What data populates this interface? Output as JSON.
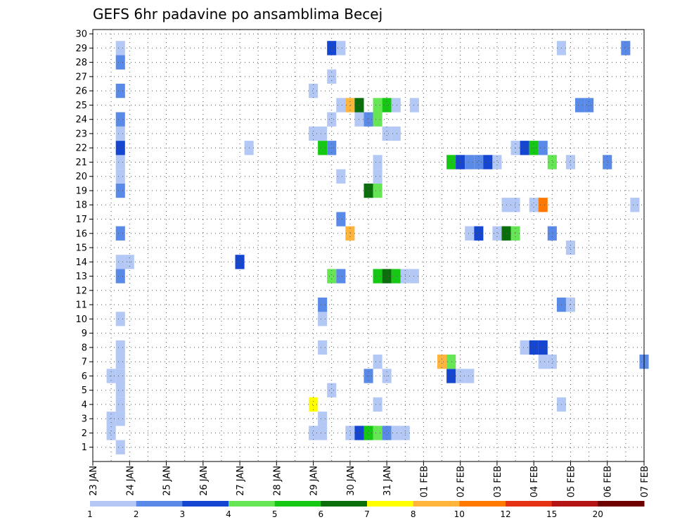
{
  "chart_data": {
    "type": "heatmap",
    "title": "GEFS 6hr padavine po ansamblima Becej",
    "ylabels": [
      "1",
      "2",
      "3",
      "4",
      "5",
      "6",
      "7",
      "8",
      "9",
      "10",
      "11",
      "12",
      "13",
      "14",
      "15",
      "16",
      "17",
      "18",
      "19",
      "20",
      "21",
      "22",
      "23",
      "24",
      "25",
      "26",
      "27",
      "28",
      "29",
      "30"
    ],
    "xlabels": [
      "23 JAN",
      "24 JAN",
      "25 JAN",
      "26 JAN",
      "27 JAN",
      "28 JAN",
      "29 JAN",
      "30 JAN",
      "31 JAN",
      "01 FEB",
      "02 FEB",
      "03 FEB",
      "04 FEB",
      "05 FEB",
      "06 FEB",
      "07 FEB"
    ],
    "x_range_days": [
      0,
      15
    ],
    "y_range": [
      0,
      30
    ],
    "grid": true,
    "colorbar": {
      "levels": [
        1,
        2,
        3,
        4,
        5,
        6,
        7,
        8,
        10,
        12,
        15,
        20
      ],
      "colors": [
        "#b4c8f5",
        "#5a8ae8",
        "#1446d2",
        "#66e655",
        "#14c814",
        "#0a6e0a",
        "#ffff00",
        "#ffb43c",
        "#ff7800",
        "#e63214",
        "#b41414",
        "#6e0000"
      ]
    },
    "cells": [
      {
        "member": 1,
        "day": 0.75,
        "cls": 0
      },
      {
        "member": 2,
        "day": 0.5,
        "cls": 0
      },
      {
        "member": 2,
        "day": 6.0,
        "cls": 0
      },
      {
        "member": 2,
        "day": 6.25,
        "cls": 0
      },
      {
        "member": 2,
        "day": 7.0,
        "cls": 0
      },
      {
        "member": 2,
        "day": 7.25,
        "cls": 2
      },
      {
        "member": 2,
        "day": 7.5,
        "cls": 4
      },
      {
        "member": 2,
        "day": 7.75,
        "cls": 3
      },
      {
        "member": 2,
        "day": 8.0,
        "cls": 1
      },
      {
        "member": 2,
        "day": 8.25,
        "cls": 0
      },
      {
        "member": 2,
        "day": 8.5,
        "cls": 0
      },
      {
        "member": 3,
        "day": 0.5,
        "cls": 0
      },
      {
        "member": 3,
        "day": 0.75,
        "cls": 0
      },
      {
        "member": 3,
        "day": 6.25,
        "cls": 0
      },
      {
        "member": 4,
        "day": 0.75,
        "cls": 0
      },
      {
        "member": 4,
        "day": 6.0,
        "cls": 6
      },
      {
        "member": 4,
        "day": 7.75,
        "cls": 0
      },
      {
        "member": 4,
        "day": 12.75,
        "cls": 0
      },
      {
        "member": 5,
        "day": 0.75,
        "cls": 0
      },
      {
        "member": 5,
        "day": 6.5,
        "cls": 0
      },
      {
        "member": 6,
        "day": 0.5,
        "cls": 0
      },
      {
        "member": 6,
        "day": 0.75,
        "cls": 0
      },
      {
        "member": 6,
        "day": 7.5,
        "cls": 1
      },
      {
        "member": 6,
        "day": 8.0,
        "cls": 0
      },
      {
        "member": 6,
        "day": 9.75,
        "cls": 2
      },
      {
        "member": 6,
        "day": 10.0,
        "cls": 0
      },
      {
        "member": 6,
        "day": 10.25,
        "cls": 0
      },
      {
        "member": 7,
        "day": 0.75,
        "cls": 0
      },
      {
        "member": 7,
        "day": 7.75,
        "cls": 0
      },
      {
        "member": 7,
        "day": 9.5,
        "cls": 7
      },
      {
        "member": 7,
        "day": 9.75,
        "cls": 3
      },
      {
        "member": 7,
        "day": 12.25,
        "cls": 0
      },
      {
        "member": 7,
        "day": 12.5,
        "cls": 0
      },
      {
        "member": 7,
        "day": 15.0,
        "cls": 1
      },
      {
        "member": 8,
        "day": 0.75,
        "cls": 0
      },
      {
        "member": 8,
        "day": 6.25,
        "cls": 0
      },
      {
        "member": 8,
        "day": 11.75,
        "cls": 0
      },
      {
        "member": 8,
        "day": 12.0,
        "cls": 2
      },
      {
        "member": 8,
        "day": 12.25,
        "cls": 2
      },
      {
        "member": 10,
        "day": 0.75,
        "cls": 0
      },
      {
        "member": 10,
        "day": 6.25,
        "cls": 0
      },
      {
        "member": 11,
        "day": 6.25,
        "cls": 1
      },
      {
        "member": 11,
        "day": 12.75,
        "cls": 1
      },
      {
        "member": 11,
        "day": 13.0,
        "cls": 0
      },
      {
        "member": 13,
        "day": 0.75,
        "cls": 1
      },
      {
        "member": 13,
        "day": 6.5,
        "cls": 3
      },
      {
        "member": 13,
        "day": 6.75,
        "cls": 1
      },
      {
        "member": 13,
        "day": 7.75,
        "cls": 4
      },
      {
        "member": 13,
        "day": 8.0,
        "cls": 5
      },
      {
        "member": 13,
        "day": 8.25,
        "cls": 4
      },
      {
        "member": 13,
        "day": 8.5,
        "cls": 0
      },
      {
        "member": 13,
        "day": 8.75,
        "cls": 0
      },
      {
        "member": 14,
        "day": 0.75,
        "cls": 0
      },
      {
        "member": 14,
        "day": 1.0,
        "cls": 0
      },
      {
        "member": 14,
        "day": 4.0,
        "cls": 2
      },
      {
        "member": 15,
        "day": 13.0,
        "cls": 0
      },
      {
        "member": 16,
        "day": 0.75,
        "cls": 1
      },
      {
        "member": 16,
        "day": 7.0,
        "cls": 7
      },
      {
        "member": 16,
        "day": 10.25,
        "cls": 0
      },
      {
        "member": 16,
        "day": 10.5,
        "cls": 2
      },
      {
        "member": 16,
        "day": 11.0,
        "cls": 0
      },
      {
        "member": 16,
        "day": 11.25,
        "cls": 5
      },
      {
        "member": 16,
        "day": 11.5,
        "cls": 3
      },
      {
        "member": 16,
        "day": 12.5,
        "cls": 1
      },
      {
        "member": 17,
        "day": 6.75,
        "cls": 1
      },
      {
        "member": 18,
        "day": 11.25,
        "cls": 0
      },
      {
        "member": 18,
        "day": 11.5,
        "cls": 0
      },
      {
        "member": 18,
        "day": 12.0,
        "cls": 0
      },
      {
        "member": 18,
        "day": 12.25,
        "cls": 8
      },
      {
        "member": 18,
        "day": 14.75,
        "cls": 0
      },
      {
        "member": 19,
        "day": 0.75,
        "cls": 1
      },
      {
        "member": 19,
        "day": 7.5,
        "cls": 5
      },
      {
        "member": 19,
        "day": 7.75,
        "cls": 3
      },
      {
        "member": 20,
        "day": 0.75,
        "cls": 0
      },
      {
        "member": 20,
        "day": 6.75,
        "cls": 0
      },
      {
        "member": 20,
        "day": 7.75,
        "cls": 0
      },
      {
        "member": 21,
        "day": 0.75,
        "cls": 0
      },
      {
        "member": 21,
        "day": 7.75,
        "cls": 0
      },
      {
        "member": 21,
        "day": 9.75,
        "cls": 4
      },
      {
        "member": 21,
        "day": 10.0,
        "cls": 2
      },
      {
        "member": 21,
        "day": 10.25,
        "cls": 1
      },
      {
        "member": 21,
        "day": 10.5,
        "cls": 1
      },
      {
        "member": 21,
        "day": 10.75,
        "cls": 2
      },
      {
        "member": 21,
        "day": 11.0,
        "cls": 0
      },
      {
        "member": 21,
        "day": 12.5,
        "cls": 3
      },
      {
        "member": 21,
        "day": 13.0,
        "cls": 0
      },
      {
        "member": 21,
        "day": 14.0,
        "cls": 1
      },
      {
        "member": 22,
        "day": 0.75,
        "cls": 2
      },
      {
        "member": 22,
        "day": 4.25,
        "cls": 0
      },
      {
        "member": 22,
        "day": 6.25,
        "cls": 4
      },
      {
        "member": 22,
        "day": 6.5,
        "cls": 1
      },
      {
        "member": 22,
        "day": 11.5,
        "cls": 0
      },
      {
        "member": 22,
        "day": 11.75,
        "cls": 2
      },
      {
        "member": 22,
        "day": 12.0,
        "cls": 4
      },
      {
        "member": 22,
        "day": 12.25,
        "cls": 1
      },
      {
        "member": 23,
        "day": 0.75,
        "cls": 0
      },
      {
        "member": 23,
        "day": 6.0,
        "cls": 0
      },
      {
        "member": 23,
        "day": 6.25,
        "cls": 0
      },
      {
        "member": 23,
        "day": 8.0,
        "cls": 0
      },
      {
        "member": 23,
        "day": 8.25,
        "cls": 0
      },
      {
        "member": 24,
        "day": 0.75,
        "cls": 1
      },
      {
        "member": 24,
        "day": 6.5,
        "cls": 0
      },
      {
        "member": 24,
        "day": 7.25,
        "cls": 0
      },
      {
        "member": 24,
        "day": 7.5,
        "cls": 1
      },
      {
        "member": 24,
        "day": 7.75,
        "cls": 3
      },
      {
        "member": 25,
        "day": 6.75,
        "cls": 0
      },
      {
        "member": 25,
        "day": 7.0,
        "cls": 7
      },
      {
        "member": 25,
        "day": 7.25,
        "cls": 5
      },
      {
        "member": 25,
        "day": 7.75,
        "cls": 3
      },
      {
        "member": 25,
        "day": 8.0,
        "cls": 4
      },
      {
        "member": 25,
        "day": 8.25,
        "cls": 0
      },
      {
        "member": 25,
        "day": 8.75,
        "cls": 0
      },
      {
        "member": 25,
        "day": 13.25,
        "cls": 1
      },
      {
        "member": 25,
        "day": 13.5,
        "cls": 1
      },
      {
        "member": 26,
        "day": 0.75,
        "cls": 1
      },
      {
        "member": 26,
        "day": 6.0,
        "cls": 0
      },
      {
        "member": 27,
        "day": 6.5,
        "cls": 0
      },
      {
        "member": 28,
        "day": 0.75,
        "cls": 1
      },
      {
        "member": 29,
        "day": 0.75,
        "cls": 0
      },
      {
        "member": 29,
        "day": 6.5,
        "cls": 2
      },
      {
        "member": 29,
        "day": 6.75,
        "cls": 0
      },
      {
        "member": 29,
        "day": 12.75,
        "cls": 0
      },
      {
        "member": 29,
        "day": 14.5,
        "cls": 1
      }
    ]
  }
}
